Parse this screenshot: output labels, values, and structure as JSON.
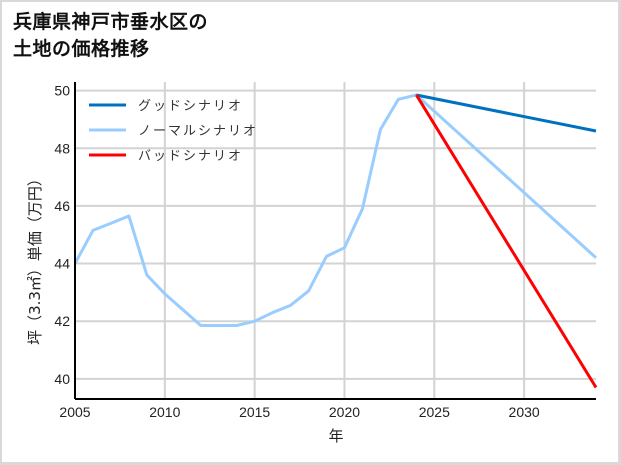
{
  "title": "兵庫県神戸市垂水区の\n土地の価格推移",
  "chart_data": {
    "type": "line",
    "title": "兵庫県神戸市垂水区の土地の価格推移",
    "xlabel": "年",
    "ylabel": "坪（3.3㎡）単価（万円）",
    "xlim": [
      2005,
      2034
    ],
    "ylim": [
      39.3,
      50.3
    ],
    "xticks": [
      2005,
      2010,
      2015,
      2020,
      2025,
      2030
    ],
    "yticks": [
      40,
      42,
      44,
      46,
      48,
      50
    ],
    "grid": true,
    "legend_position": "upper left",
    "series": [
      {
        "name": "グッドシナリオ",
        "color": "#0070c0",
        "x": [
          2024,
          2034
        ],
        "values": [
          49.85,
          48.6
        ]
      },
      {
        "name": "ノーマルシナリオ",
        "color": "#99ccff",
        "x": [
          2005,
          2006,
          2007,
          2008,
          2009,
          2010,
          2011,
          2012,
          2013,
          2014,
          2015,
          2016,
          2017,
          2018,
          2019,
          2020,
          2021,
          2022,
          2023,
          2024,
          2034
        ],
        "values": [
          44.0,
          45.15,
          45.4,
          45.65,
          43.6,
          42.95,
          42.4,
          41.85,
          41.85,
          41.85,
          42.0,
          42.3,
          42.55,
          43.05,
          44.25,
          44.55,
          45.9,
          48.65,
          49.7,
          49.85,
          44.2
        ]
      },
      {
        "name": "バッドシナリオ",
        "color": "#ff0000",
        "x": [
          2024,
          2034
        ],
        "values": [
          49.85,
          39.7
        ]
      }
    ]
  }
}
